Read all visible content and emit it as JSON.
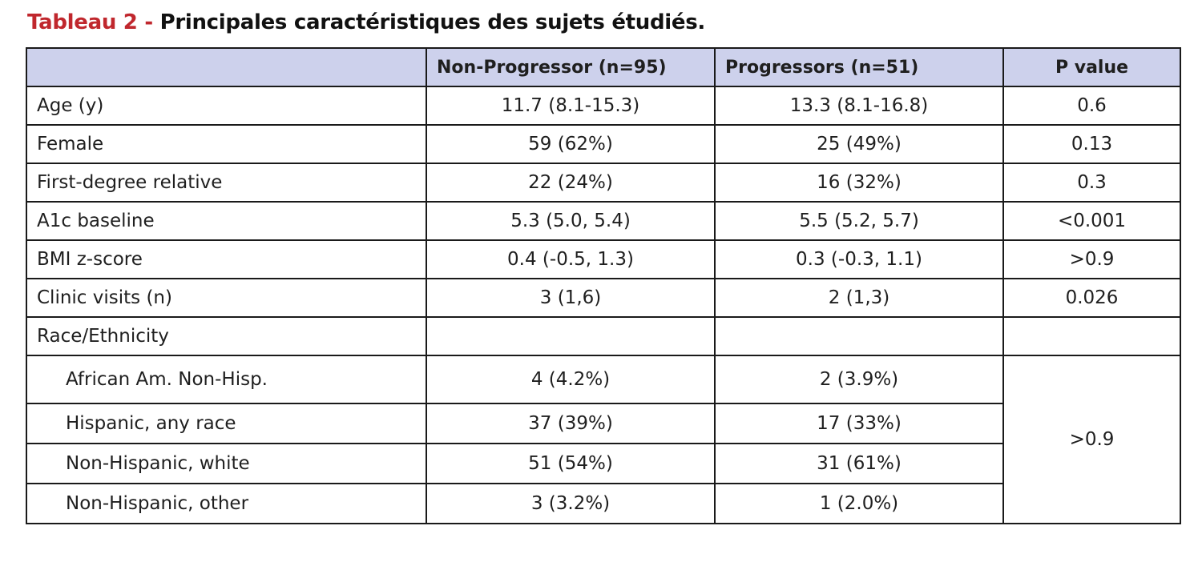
{
  "caption": {
    "label": "Tableau 2 - ",
    "title": "Principales caractéristiques des sujets étudiés."
  },
  "colors": {
    "caption_label": "#c0272d",
    "header_background": "#cdd1ec",
    "border": "#1a1a1a"
  },
  "table": {
    "headers": [
      "",
      "Non-Progressor (n=95)",
      "Progressors (n=51)",
      "P value"
    ],
    "rows": [
      {
        "label": "Age (y)",
        "non_progressor": "11.7 (8.1-15.3)",
        "progressors": "13.3 (8.1-16.8)",
        "p_value": "0.6"
      },
      {
        "label": "Female",
        "non_progressor": "59 (62%)",
        "progressors": "25 (49%)",
        "p_value": "0.13"
      },
      {
        "label": "First-degree relative",
        "non_progressor": "22 (24%)",
        "progressors": "16 (32%)",
        "p_value": "0.3"
      },
      {
        "label": "A1c baseline",
        "non_progressor": "5.3 (5.0, 5.4)",
        "progressors": "5.5 (5.2, 5.7)",
        "p_value": "<0.001"
      },
      {
        "label": "BMI z-score",
        "non_progressor": "0.4 (-0.5, 1.3)",
        "progressors": "0.3 (-0.3, 1.1)",
        "p_value": ">0.9"
      },
      {
        "label": "Clinic visits (n)",
        "non_progressor": "3 (1,6)",
        "progressors": "2 (1,3)",
        "p_value": "0.026"
      },
      {
        "label": "Race/Ethnicity",
        "non_progressor": "",
        "progressors": "",
        "p_value": ""
      }
    ],
    "race_subrows": [
      {
        "label": "African Am. Non-Hisp.",
        "non_progressor": "4 (4.2%)",
        "progressors": "2 (3.9%)"
      },
      {
        "label": "Hispanic, any race",
        "non_progressor": "37 (39%)",
        "progressors": "17 (33%)"
      },
      {
        "label": "Non-Hispanic, white",
        "non_progressor": "51 (54%)",
        "progressors": "31 (61%)"
      },
      {
        "label": "Non-Hispanic, other",
        "non_progressor": "3 (3.2%)",
        "progressors": "1 (2.0%)"
      }
    ],
    "race_p_value": ">0.9"
  }
}
